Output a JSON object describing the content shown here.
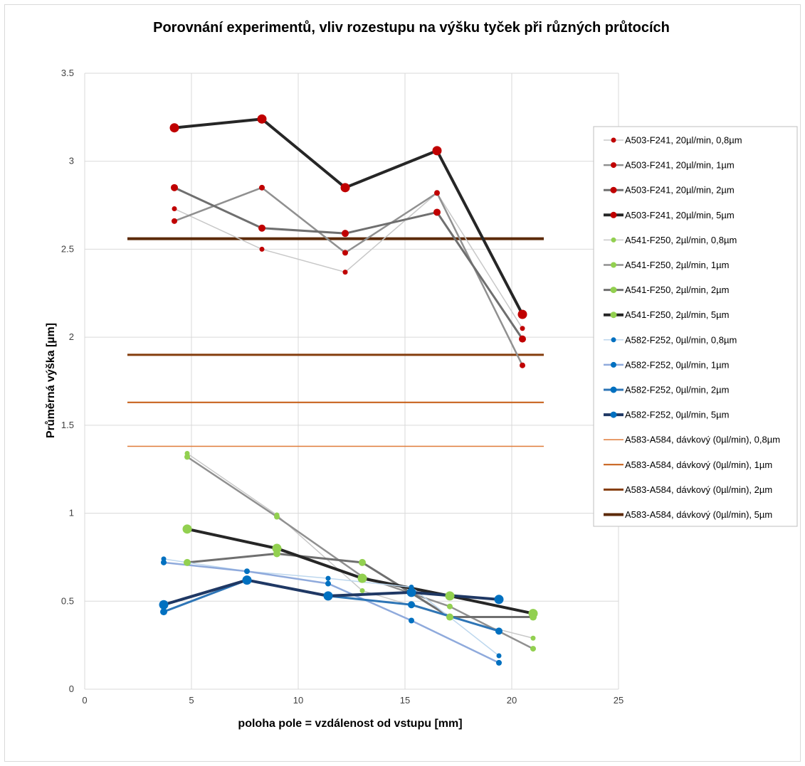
{
  "chart_data": {
    "type": "scatter",
    "title": "Porovnání experimentů, vliv rozestupu na výšku tyček při různých průtocích",
    "xlabel": "poloha pole = vzdálenost od vstupu [mm]",
    "ylabel": "Průměrná výška [µm]",
    "xlim": [
      0,
      25
    ],
    "ylim": [
      0,
      3.5
    ],
    "xticks": [
      "0",
      "5",
      "10",
      "15",
      "20",
      "25"
    ],
    "yticks": [
      "0",
      "0.5",
      "1",
      "1.5",
      "2",
      "2.5",
      "3",
      "3.5"
    ],
    "grid": true,
    "legend_position": "right",
    "series": [
      {
        "name": "A503-F241, 20µl/min, 0,8µm",
        "line_color": "#c8c8c8",
        "marker_color": "#c00000",
        "line_width": 1.5,
        "marker_size": 3.5,
        "x": [
          4.2,
          8.3,
          12.2,
          16.5,
          20.5
        ],
        "y": [
          2.73,
          2.5,
          2.37,
          2.82,
          2.05
        ]
      },
      {
        "name": "A503-F241, 20µl/min, 1µm",
        "line_color": "#909090",
        "marker_color": "#c00000",
        "line_width": 2.5,
        "marker_size": 4,
        "x": [
          4.2,
          8.3,
          12.2,
          16.5,
          20.5
        ],
        "y": [
          2.66,
          2.85,
          2.48,
          2.82,
          1.84
        ]
      },
      {
        "name": "A503-F241, 20µl/min, 2µm",
        "line_color": "#6f6f6f",
        "marker_color": "#c00000",
        "line_width": 3,
        "marker_size": 5,
        "x": [
          4.2,
          8.3,
          12.2,
          16.5,
          20.5
        ],
        "y": [
          2.85,
          2.62,
          2.59,
          2.71,
          1.99
        ]
      },
      {
        "name": "A503-F241, 20µl/min, 5µm",
        "line_color": "#262626",
        "marker_color": "#c00000",
        "line_width": 4,
        "marker_size": 6.5,
        "x": [
          4.2,
          8.3,
          12.2,
          16.5,
          20.5
        ],
        "y": [
          3.19,
          3.24,
          2.85,
          3.06,
          2.13
        ]
      },
      {
        "name": "A541-F250, 2µl/min, 0,8µm",
        "line_color": "#c8c8c8",
        "marker_color": "#92d050",
        "line_width": 1.5,
        "marker_size": 3.5,
        "x": [
          4.8,
          9.0,
          13.0,
          17.1,
          21.0
        ],
        "y": [
          1.34,
          0.99,
          0.56,
          0.41,
          0.29
        ]
      },
      {
        "name": "A541-F250, 2µl/min, 1µm",
        "line_color": "#909090",
        "marker_color": "#92d050",
        "line_width": 2.5,
        "marker_size": 4,
        "x": [
          4.8,
          9.0,
          13.0,
          17.1,
          21.0
        ],
        "y": [
          1.32,
          0.98,
          0.64,
          0.47,
          0.23
        ]
      },
      {
        "name": "A541-F250, 2µl/min, 2µm",
        "line_color": "#6f6f6f",
        "marker_color": "#92d050",
        "line_width": 3,
        "marker_size": 5,
        "x": [
          4.8,
          9.0,
          13.0,
          17.1,
          21.0
        ],
        "y": [
          0.72,
          0.77,
          0.72,
          0.41,
          0.41
        ]
      },
      {
        "name": "A541-F250, 2µl/min, 5µm",
        "line_color": "#262626",
        "marker_color": "#92d050",
        "line_width": 4,
        "marker_size": 6.5,
        "x": [
          4.8,
          9.0,
          13.0,
          17.1,
          21.0
        ],
        "y": [
          0.91,
          0.8,
          0.63,
          0.53,
          0.43
        ]
      },
      {
        "name": "A582-F252, 0µl/min, 0,8µm",
        "line_color": "#bdd7ee",
        "marker_color": "#0070c0",
        "line_width": 1.5,
        "marker_size": 3.5,
        "x": [
          3.7,
          7.6,
          11.4,
          15.3,
          19.4
        ],
        "y": [
          0.74,
          0.67,
          0.63,
          0.58,
          0.19
        ]
      },
      {
        "name": "A582-F252, 0µl/min, 1µm",
        "line_color": "#8faadc",
        "marker_color": "#0070c0",
        "line_width": 2.5,
        "marker_size": 4,
        "x": [
          3.7,
          7.6,
          11.4,
          15.3,
          19.4
        ],
        "y": [
          0.72,
          0.67,
          0.6,
          0.39,
          0.15
        ]
      },
      {
        "name": "A582-F252, 0µl/min, 2µm",
        "line_color": "#2e75b6",
        "marker_color": "#0070c0",
        "line_width": 3,
        "marker_size": 5,
        "x": [
          3.7,
          7.6,
          11.4,
          15.3,
          19.4
        ],
        "y": [
          0.44,
          0.62,
          0.53,
          0.48,
          0.33
        ]
      },
      {
        "name": "A582-F252, 0µl/min, 5µm",
        "line_color": "#1f3864",
        "marker_color": "#0070c0",
        "line_width": 4,
        "marker_size": 6.5,
        "x": [
          3.7,
          7.6,
          11.4,
          15.3,
          19.4
        ],
        "y": [
          0.48,
          0.62,
          0.53,
          0.55,
          0.51
        ]
      },
      {
        "name": "A583-A584, dávkový (0µl/min), 0,8µm",
        "line_color": "#e07b39",
        "marker_color": null,
        "line_width": 1.5,
        "marker_size": 0,
        "x": [
          2,
          21.5
        ],
        "y": [
          1.38,
          1.38
        ]
      },
      {
        "name": "A583-A584, dávkový (0µl/min), 1µm",
        "line_color": "#c55a11",
        "marker_color": null,
        "line_width": 2,
        "marker_size": 0,
        "x": [
          2,
          21.5
        ],
        "y": [
          1.63,
          1.63
        ]
      },
      {
        "name": "A583-A584, dávkový (0µl/min), 2µm",
        "line_color": "#843c0c",
        "marker_color": null,
        "line_width": 3,
        "marker_size": 0,
        "x": [
          2,
          21.5
        ],
        "y": [
          1.9,
          1.9
        ]
      },
      {
        "name": "A583-A584, dávkový (0µl/min), 5µm",
        "line_color": "#5c2a08",
        "marker_color": null,
        "line_width": 4,
        "marker_size": 0,
        "x": [
          2,
          21.5
        ],
        "y": [
          2.56,
          2.56
        ]
      }
    ]
  }
}
